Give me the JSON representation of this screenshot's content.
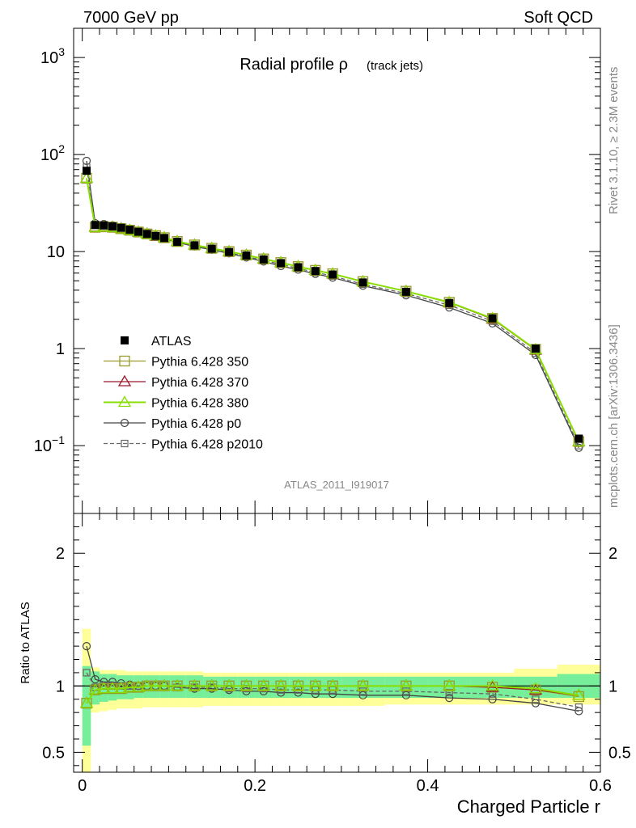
{
  "header": {
    "left": "7000 GeV pp",
    "right": "Soft QCD"
  },
  "title": {
    "main": "Radial profile ρ",
    "sub": "(track jets)"
  },
  "side_labels": {
    "rivet": "Rivet 3.1.10, ≥ 2.3M events",
    "ref": "mcplots.cern.ch [arXiv:1306.3436]"
  },
  "analysis_tag": "ATLAS_2011_I919017",
  "ratio_ylabel": "Ratio to ATLAS",
  "xlabel": "Charged Particle r",
  "colors": {
    "atlas": "#000000",
    "p350": "#9a9a2a",
    "p370": "#9a1a2a",
    "p380": "#88dd00",
    "p0": "#444444",
    "p2010": "#666666",
    "band_inner": "#77ee99",
    "band_outer": "#ffff99"
  },
  "chart_data": [
    {
      "type": "line",
      "yscale": "log",
      "xlim": [
        -0.01,
        0.6
      ],
      "ylim": [
        0.02,
        2000
      ],
      "ytick_labels": [
        "10^-1",
        "1",
        "10",
        "10^2",
        "10^3"
      ],
      "x": [
        0.005,
        0.015,
        0.025,
        0.035,
        0.045,
        0.055,
        0.065,
        0.075,
        0.085,
        0.095,
        0.11,
        0.13,
        0.15,
        0.17,
        0.19,
        0.21,
        0.23,
        0.25,
        0.27,
        0.29,
        0.325,
        0.375,
        0.425,
        0.475,
        0.525,
        0.575
      ],
      "series": [
        {
          "name": "ATLAS",
          "key": "atlas",
          "values": [
            68,
            18.8,
            18.6,
            18.2,
            17.6,
            16.8,
            16.0,
            15.2,
            14.5,
            13.8,
            12.6,
            11.6,
            10.7,
            9.9,
            9.1,
            8.3,
            7.6,
            6.9,
            6.3,
            5.8,
            4.8,
            3.85,
            2.95,
            2.05,
            1.0,
            0.118
          ]
        },
        {
          "name": "Pythia 6.428 350",
          "key": "p350",
          "values": [
            57,
            17.8,
            18.0,
            17.8,
            17.2,
            16.6,
            15.9,
            15.2,
            14.6,
            13.9,
            12.7,
            11.7,
            10.8,
            10.0,
            9.2,
            8.4,
            7.7,
            7.0,
            6.4,
            5.9,
            4.9,
            3.9,
            3.0,
            2.05,
            0.98,
            0.11
          ]
        },
        {
          "name": "Pythia 6.428 370",
          "key": "p370",
          "values": [
            57,
            17.9,
            18.1,
            17.9,
            17.3,
            16.6,
            15.9,
            15.2,
            14.5,
            13.9,
            12.7,
            11.7,
            10.8,
            10.0,
            9.2,
            8.4,
            7.7,
            7.0,
            6.4,
            5.9,
            4.9,
            3.9,
            2.98,
            2.02,
            0.97,
            0.11
          ]
        },
        {
          "name": "Pythia 6.428 380",
          "key": "p380",
          "values": [
            57,
            17.8,
            18.0,
            17.8,
            17.2,
            16.6,
            15.9,
            15.2,
            14.6,
            13.9,
            12.7,
            11.7,
            10.8,
            10.0,
            9.2,
            8.4,
            7.7,
            7.0,
            6.4,
            5.9,
            4.9,
            3.9,
            3.0,
            2.05,
            0.98,
            0.11
          ]
        },
        {
          "name": "Pythia 6.428 p0",
          "key": "p0",
          "values": [
            86,
            19.6,
            19.2,
            18.6,
            17.8,
            16.9,
            16.0,
            15.2,
            14.4,
            13.7,
            12.4,
            11.3,
            10.4,
            9.6,
            8.7,
            7.9,
            7.1,
            6.5,
            5.9,
            5.4,
            4.45,
            3.55,
            2.65,
            1.82,
            0.86,
            0.095
          ]
        },
        {
          "name": "Pythia 6.428 p2010",
          "key": "p2010",
          "values": [
            74,
            18.6,
            18.8,
            18.4,
            17.7,
            16.9,
            16.0,
            15.2,
            14.5,
            13.8,
            12.5,
            11.5,
            10.6,
            9.7,
            8.9,
            8.1,
            7.4,
            6.7,
            6.1,
            5.6,
            4.6,
            3.7,
            2.8,
            1.92,
            0.9,
            0.1
          ]
        }
      ],
      "legend": {
        "placement": "center-left"
      }
    },
    {
      "type": "line",
      "ylabel": "Ratio to ATLAS",
      "xlabel": "Charged Particle r",
      "xlim": [
        -0.01,
        0.6
      ],
      "ylim": [
        0.35,
        2.3
      ],
      "yticks": [
        0.5,
        1,
        2
      ],
      "xticks": [
        0,
        0.2,
        0.4,
        0.6
      ],
      "xtick_labels": [
        "0",
        "0.2",
        "0.4",
        "0.6"
      ],
      "x": [
        0.005,
        0.015,
        0.025,
        0.035,
        0.045,
        0.055,
        0.065,
        0.075,
        0.085,
        0.095,
        0.11,
        0.13,
        0.15,
        0.17,
        0.19,
        0.21,
        0.23,
        0.25,
        0.27,
        0.29,
        0.325,
        0.375,
        0.425,
        0.475,
        0.525,
        0.575
      ],
      "x_edges": [
        0.0,
        0.01,
        0.02,
        0.03,
        0.04,
        0.05,
        0.06,
        0.07,
        0.08,
        0.09,
        0.1,
        0.12,
        0.14,
        0.16,
        0.18,
        0.2,
        0.22,
        0.24,
        0.26,
        0.28,
        0.3,
        0.35,
        0.4,
        0.45,
        0.5,
        0.55,
        0.6
      ],
      "band_inner": {
        "low": [
          0.55,
          0.86,
          0.88,
          0.89,
          0.9,
          0.9,
          0.91,
          0.91,
          0.91,
          0.91,
          0.91,
          0.91,
          0.91,
          0.91,
          0.91,
          0.91,
          0.91,
          0.91,
          0.91,
          0.91,
          0.91,
          0.91,
          0.91,
          0.91,
          0.91,
          0.91
        ],
        "high": [
          1.15,
          1.11,
          1.09,
          1.09,
          1.08,
          1.08,
          1.08,
          1.08,
          1.08,
          1.08,
          1.08,
          1.08,
          1.07,
          1.07,
          1.07,
          1.07,
          1.07,
          1.07,
          1.07,
          1.07,
          1.07,
          1.07,
          1.07,
          1.07,
          1.07,
          1.09
        ]
      },
      "band_outer": {
        "low": [
          0.35,
          0.8,
          0.81,
          0.82,
          0.83,
          0.83,
          0.83,
          0.84,
          0.84,
          0.84,
          0.84,
          0.84,
          0.85,
          0.85,
          0.85,
          0.85,
          0.85,
          0.85,
          0.85,
          0.85,
          0.85,
          0.86,
          0.86,
          0.86,
          0.86,
          0.86
        ],
        "high": [
          1.43,
          1.14,
          1.12,
          1.12,
          1.12,
          1.11,
          1.11,
          1.11,
          1.11,
          1.11,
          1.11,
          1.11,
          1.1,
          1.1,
          1.1,
          1.1,
          1.1,
          1.1,
          1.1,
          1.1,
          1.1,
          1.1,
          1.1,
          1.1,
          1.13,
          1.16
        ]
      },
      "series": [
        {
          "name": "Pythia 6.428 350",
          "key": "p350",
          "values": [
            0.87,
            0.97,
            0.98,
            0.98,
            0.98,
            0.99,
            0.99,
            1.0,
            1.0,
            1.0,
            1.0,
            1.0,
            1.0,
            1.0,
            1.0,
            1.0,
            1.0,
            1.0,
            1.0,
            1.0,
            1.0,
            1.0,
            1.0,
            0.99,
            0.97,
            0.92
          ]
        },
        {
          "name": "Pythia 6.428 370",
          "key": "p370",
          "values": [
            0.87,
            0.97,
            0.98,
            0.98,
            0.98,
            0.99,
            0.99,
            1.0,
            1.0,
            1.0,
            1.0,
            1.0,
            1.0,
            1.0,
            1.0,
            1.0,
            1.0,
            1.0,
            1.0,
            1.0,
            1.0,
            1.0,
            1.0,
            0.99,
            0.97,
            0.93
          ]
        },
        {
          "name": "Pythia 6.428 380",
          "key": "p380",
          "values": [
            0.87,
            0.97,
            0.98,
            0.98,
            0.98,
            0.99,
            0.99,
            1.0,
            1.0,
            1.0,
            1.0,
            1.0,
            1.0,
            1.0,
            1.0,
            1.0,
            1.0,
            1.0,
            1.0,
            1.0,
            1.0,
            1.0,
            1.0,
            1.0,
            0.98,
            0.93
          ]
        },
        {
          "name": "Pythia 6.428 p0",
          "key": "p0",
          "values": [
            1.3,
            1.05,
            1.03,
            1.03,
            1.02,
            1.01,
            1.0,
            1.0,
            1.0,
            1.0,
            0.99,
            0.98,
            0.98,
            0.97,
            0.96,
            0.96,
            0.95,
            0.95,
            0.94,
            0.94,
            0.93,
            0.93,
            0.91,
            0.9,
            0.87,
            0.81
          ]
        },
        {
          "name": "Pythia 6.428 p2010",
          "key": "p2010",
          "values": [
            1.1,
            0.99,
            1.0,
            1.0,
            1.0,
            1.0,
            1.0,
            1.0,
            1.0,
            1.0,
            0.99,
            0.99,
            0.99,
            0.98,
            0.98,
            0.98,
            0.97,
            0.97,
            0.97,
            0.97,
            0.96,
            0.96,
            0.95,
            0.94,
            0.9,
            0.84
          ]
        }
      ]
    }
  ]
}
